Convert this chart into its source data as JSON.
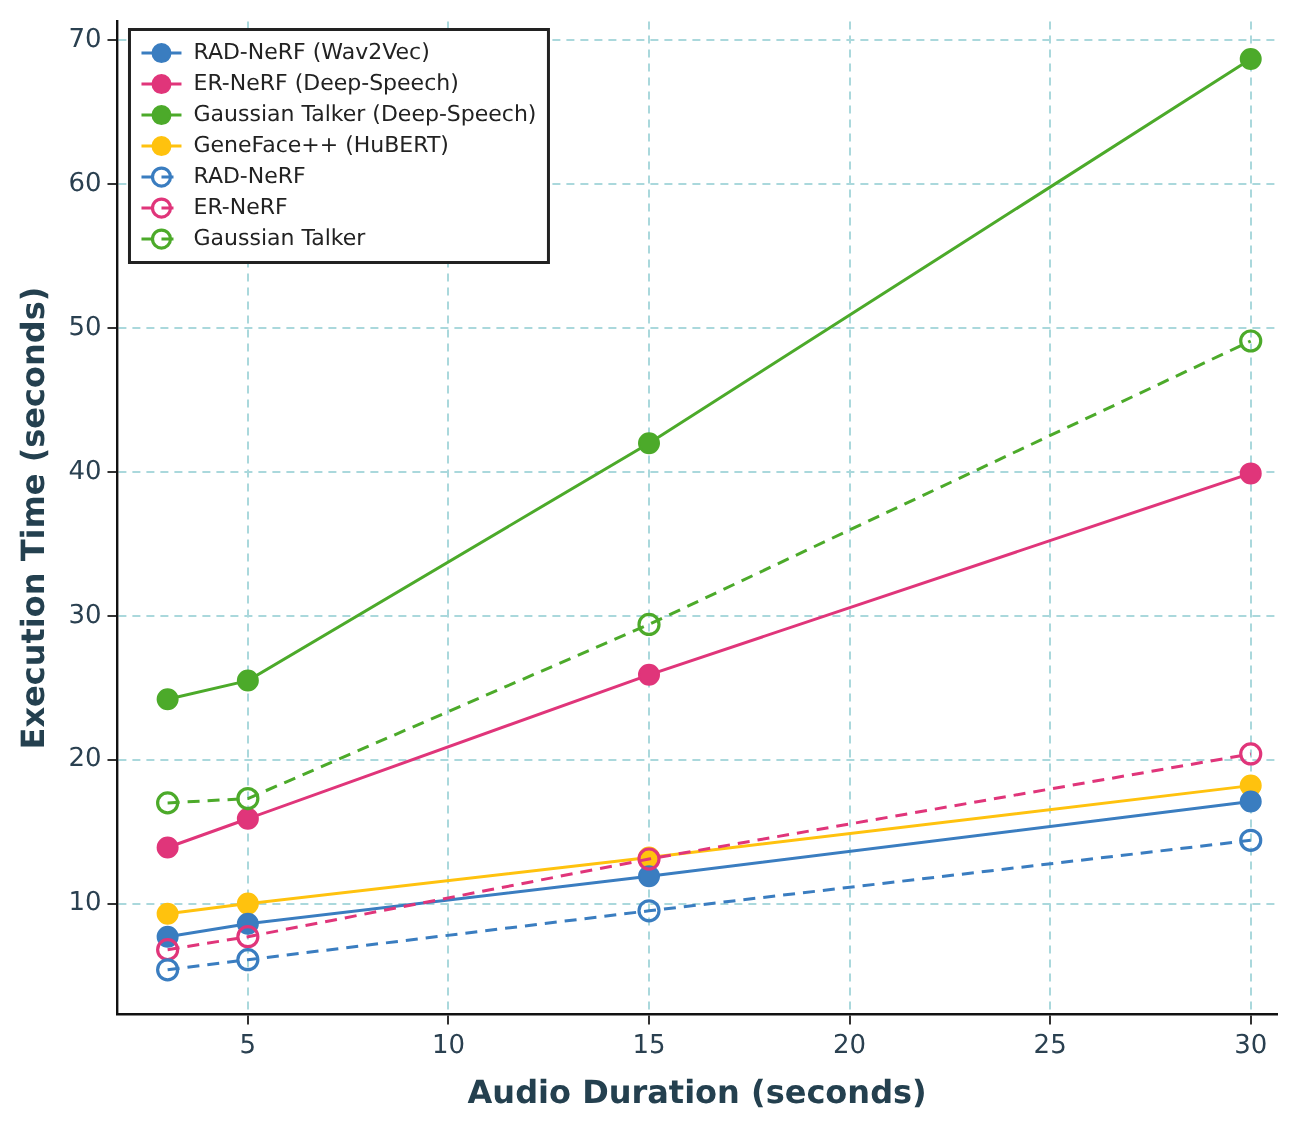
{
  "chart_data": {
    "type": "line",
    "xlabel": "Audio Duration (seconds)",
    "ylabel": "Execution Time (seconds)",
    "x": [
      3,
      5,
      15,
      30
    ],
    "series": [
      {
        "name": "RAD-NeRF (Wav2Vec)",
        "color": "#3a7dc0",
        "values": [
          7.7,
          8.6,
          11.9,
          17.1
        ],
        "marker": "circle",
        "line_style": "solid"
      },
      {
        "name": "ER-NeRF (Deep-Speech)",
        "color": "#e0357a",
        "values": [
          13.9,
          15.9,
          25.9,
          39.9
        ],
        "marker": "circle",
        "line_style": "solid"
      },
      {
        "name": "Gaussian Talker (Deep-Speech)",
        "color": "#4caa2a",
        "values": [
          24.2,
          25.5,
          42.0,
          68.7
        ],
        "marker": "circle",
        "line_style": "solid"
      },
      {
        "name": "GeneFace++ (HuBERT)",
        "color": "#ffc20e",
        "values": [
          9.3,
          10.0,
          13.2,
          18.2
        ],
        "marker": "circle",
        "line_style": "solid"
      },
      {
        "name": "RAD-NeRF",
        "color": "#3a7dc0",
        "values": [
          5.4,
          6.1,
          9.5,
          14.4
        ],
        "marker": "open circle",
        "line_style": "dashed"
      },
      {
        "name": "ER-NeRF",
        "color": "#e0357a",
        "values": [
          6.8,
          7.7,
          13.1,
          20.4
        ],
        "marker": "open circle",
        "line_style": "dashed"
      },
      {
        "name": "Gaussian Talker",
        "color": "#4caa2a",
        "values": [
          17.0,
          17.3,
          29.4,
          49.1
        ],
        "marker": "open circle",
        "line_style": "dashed"
      }
    ],
    "xlim": [
      1.75,
      30.65
    ],
    "xticks": [
      5,
      10,
      15,
      20,
      25,
      30
    ],
    "ylim": [
      2.3,
      71.3
    ],
    "yticks": [
      10,
      20,
      30,
      40,
      50,
      60,
      70
    ],
    "grid": true,
    "legend": "top left"
  }
}
